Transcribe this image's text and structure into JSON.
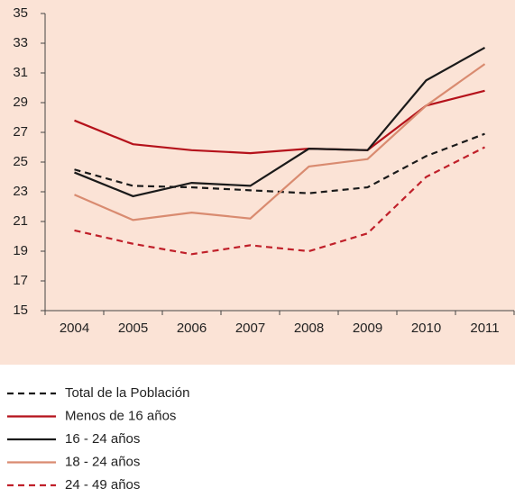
{
  "chart_data": {
    "type": "line",
    "categories": [
      "2004",
      "2005",
      "2006",
      "2007",
      "2008",
      "2009",
      "2010",
      "2011"
    ],
    "ylim": [
      15,
      35
    ],
    "yticks": [
      15,
      17,
      19,
      21,
      23,
      25,
      27,
      29,
      31,
      33,
      35
    ],
    "series": [
      {
        "name": "Total de la Población",
        "color": "#1a1a1a",
        "dashed": true,
        "values": [
          24.5,
          23.4,
          23.3,
          23.1,
          22.9,
          23.3,
          25.4,
          26.9
        ]
      },
      {
        "name": "Menos de 16 años",
        "color": "#b5121b",
        "dashed": false,
        "values": [
          27.8,
          26.2,
          25.8,
          25.6,
          25.9,
          25.8,
          28.8,
          29.8
        ]
      },
      {
        "name": "16 - 24 años",
        "color": "#1a1a1a",
        "dashed": false,
        "values": [
          24.3,
          22.7,
          23.6,
          23.4,
          25.9,
          25.8,
          30.5,
          32.7
        ]
      },
      {
        "name": "18 - 24 años",
        "color": "#d98b70",
        "dashed": false,
        "values": [
          22.8,
          21.1,
          21.6,
          21.2,
          24.7,
          25.2,
          28.8,
          31.6
        ]
      },
      {
        "name": "24 - 49 años",
        "color": "#c0202a",
        "dashed": true,
        "values": [
          20.4,
          19.5,
          18.8,
          19.4,
          19.0,
          20.2,
          24.0,
          26.0
        ]
      }
    ]
  }
}
